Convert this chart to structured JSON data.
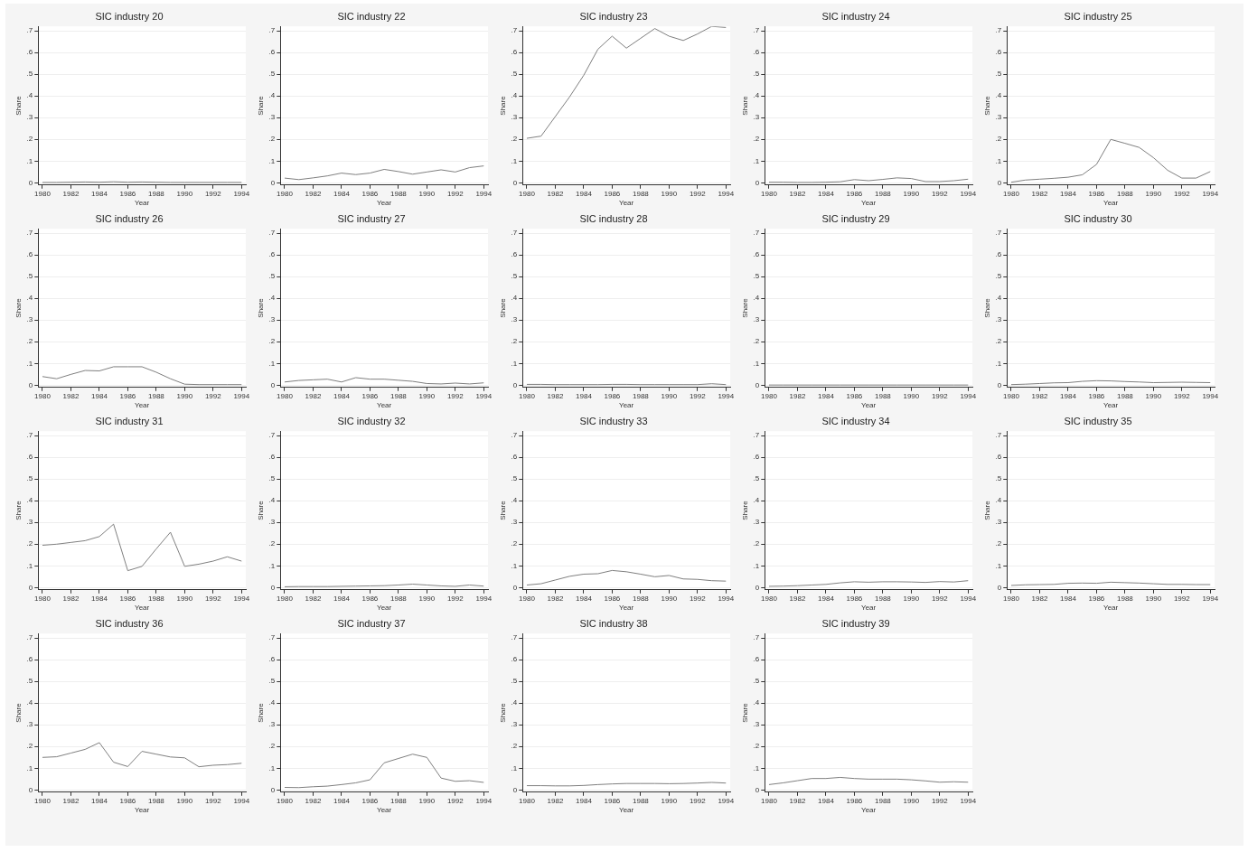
{
  "chart_data": [
    {
      "type": "line",
      "title": "SIC industry 20",
      "xlabel": "Year",
      "ylabel": "Share",
      "x": [
        1980,
        1981,
        1982,
        1983,
        1984,
        1985,
        1986,
        1987,
        1988,
        1989,
        1990,
        1991,
        1992,
        1993,
        1994
      ],
      "values": [
        0.002,
        0.002,
        0.003,
        0.004,
        0.003,
        0.005,
        0.003,
        0.004,
        0.003,
        0.002,
        0.002,
        0.002,
        0.002,
        0.002,
        0.002
      ],
      "color": "#7f7f7f",
      "xlim": [
        1979.7,
        1994.3
      ],
      "xticks": [
        1980,
        1982,
        1984,
        1986,
        1988,
        1990,
        1992,
        1994
      ],
      "ylim": [
        -0.01,
        0.72
      ],
      "yticks": [
        {
          "value": 0,
          "label": "0"
        },
        {
          "value": 0.1,
          "label": ".1"
        },
        {
          "value": 0.2,
          "label": ".2"
        },
        {
          "value": 0.3,
          "label": ".3"
        },
        {
          "value": 0.4,
          "label": ".4"
        },
        {
          "value": 0.5,
          "label": ".5"
        },
        {
          "value": 0.6,
          "label": ".6"
        },
        {
          "value": 0.7,
          "label": ".7"
        }
      ],
      "grid": "y",
      "legend": false,
      "marker": "none",
      "line_style": "solid"
    },
    {
      "type": "line",
      "title": "SIC industry 22",
      "xlabel": "Year",
      "ylabel": "Share",
      "x": [
        1980,
        1981,
        1982,
        1983,
        1984,
        1985,
        1986,
        1987,
        1988,
        1989,
        1990,
        1991,
        1992,
        1993,
        1994
      ],
      "values": [
        0.022,
        0.015,
        0.023,
        0.032,
        0.045,
        0.038,
        0.045,
        0.062,
        0.052,
        0.04,
        0.05,
        0.06,
        0.05,
        0.07,
        0.078
      ],
      "color": "#7f7f7f",
      "xlim": [
        1979.7,
        1994.3
      ],
      "xticks": [
        1980,
        1982,
        1984,
        1986,
        1988,
        1990,
        1992,
        1994
      ],
      "ylim": [
        -0.01,
        0.72
      ],
      "yticks": [
        {
          "value": 0,
          "label": "0"
        },
        {
          "value": 0.1,
          "label": ".1"
        },
        {
          "value": 0.2,
          "label": ".2"
        },
        {
          "value": 0.3,
          "label": ".3"
        },
        {
          "value": 0.4,
          "label": ".4"
        },
        {
          "value": 0.5,
          "label": ".5"
        },
        {
          "value": 0.6,
          "label": ".6"
        },
        {
          "value": 0.7,
          "label": ".7"
        }
      ],
      "grid": "y",
      "legend": false,
      "marker": "none",
      "line_style": "solid"
    },
    {
      "type": "line",
      "title": "SIC industry 23",
      "xlabel": "Year",
      "ylabel": "Share",
      "x": [
        1980,
        1981,
        1982,
        1983,
        1984,
        1985,
        1986,
        1987,
        1988,
        1989,
        1990,
        1991,
        1992,
        1993,
        1994
      ],
      "values": [
        0.205,
        0.215,
        0.305,
        0.395,
        0.495,
        0.615,
        0.675,
        0.62,
        0.665,
        0.71,
        0.675,
        0.655,
        0.685,
        0.72,
        0.715
      ],
      "color": "#7f7f7f",
      "xlim": [
        1979.7,
        1994.3
      ],
      "xticks": [
        1980,
        1982,
        1984,
        1986,
        1988,
        1990,
        1992,
        1994
      ],
      "ylim": [
        -0.01,
        0.72
      ],
      "yticks": [
        {
          "value": 0,
          "label": "0"
        },
        {
          "value": 0.1,
          "label": ".1"
        },
        {
          "value": 0.2,
          "label": ".2"
        },
        {
          "value": 0.3,
          "label": ".3"
        },
        {
          "value": 0.4,
          "label": ".4"
        },
        {
          "value": 0.5,
          "label": ".5"
        },
        {
          "value": 0.6,
          "label": ".6"
        },
        {
          "value": 0.7,
          "label": ".7"
        }
      ],
      "grid": "y",
      "legend": false,
      "marker": "none",
      "line_style": "solid"
    },
    {
      "type": "line",
      "title": "SIC industry 24",
      "xlabel": "Year",
      "ylabel": "Share",
      "x": [
        1980,
        1981,
        1982,
        1983,
        1984,
        1985,
        1986,
        1987,
        1988,
        1989,
        1990,
        1991,
        1992,
        1993,
        1994
      ],
      "values": [
        0.003,
        0.003,
        0.002,
        0.002,
        0.003,
        0.005,
        0.015,
        0.01,
        0.016,
        0.023,
        0.02,
        0.006,
        0.006,
        0.01,
        0.017
      ],
      "color": "#7f7f7f",
      "xlim": [
        1979.7,
        1994.3
      ],
      "xticks": [
        1980,
        1982,
        1984,
        1986,
        1988,
        1990,
        1992,
        1994
      ],
      "ylim": [
        -0.01,
        0.72
      ],
      "yticks": [
        {
          "value": 0,
          "label": "0"
        },
        {
          "value": 0.1,
          "label": ".1"
        },
        {
          "value": 0.2,
          "label": ".2"
        },
        {
          "value": 0.3,
          "label": ".3"
        },
        {
          "value": 0.4,
          "label": ".4"
        },
        {
          "value": 0.5,
          "label": ".5"
        },
        {
          "value": 0.6,
          "label": ".6"
        },
        {
          "value": 0.7,
          "label": ".7"
        }
      ],
      "grid": "y",
      "legend": false,
      "marker": "none",
      "line_style": "solid"
    },
    {
      "type": "line",
      "title": "SIC industry 25",
      "xlabel": "Year",
      "ylabel": "Share",
      "x": [
        1980,
        1981,
        1982,
        1983,
        1984,
        1985,
        1986,
        1987,
        1988,
        1989,
        1990,
        1991,
        1992,
        1993,
        1994
      ],
      "values": [
        0.003,
        0.013,
        0.017,
        0.021,
        0.026,
        0.037,
        0.085,
        0.2,
        0.182,
        0.163,
        0.116,
        0.058,
        0.022,
        0.022,
        0.052
      ],
      "color": "#7f7f7f",
      "xlim": [
        1979.7,
        1994.3
      ],
      "xticks": [
        1980,
        1982,
        1984,
        1986,
        1988,
        1990,
        1992,
        1994
      ],
      "ylim": [
        -0.01,
        0.72
      ],
      "yticks": [
        {
          "value": 0,
          "label": "0"
        },
        {
          "value": 0.1,
          "label": ".1"
        },
        {
          "value": 0.2,
          "label": ".2"
        },
        {
          "value": 0.3,
          "label": ".3"
        },
        {
          "value": 0.4,
          "label": ".4"
        },
        {
          "value": 0.5,
          "label": ".5"
        },
        {
          "value": 0.6,
          "label": ".6"
        },
        {
          "value": 0.7,
          "label": ".7"
        }
      ],
      "grid": "y",
      "legend": false,
      "marker": "none",
      "line_style": "solid"
    },
    {
      "type": "line",
      "title": "SIC industry 26",
      "xlabel": "Year",
      "ylabel": "Share",
      "x": [
        1980,
        1981,
        1982,
        1983,
        1984,
        1985,
        1986,
        1987,
        1988,
        1989,
        1990,
        1991,
        1992,
        1993,
        1994
      ],
      "values": [
        0.04,
        0.03,
        0.05,
        0.068,
        0.066,
        0.085,
        0.085,
        0.085,
        0.06,
        0.03,
        0.005,
        0.003,
        0.003,
        0.003,
        0.003
      ],
      "color": "#7f7f7f",
      "xlim": [
        1979.7,
        1994.3
      ],
      "xticks": [
        1980,
        1982,
        1984,
        1986,
        1988,
        1990,
        1992,
        1994
      ],
      "ylim": [
        -0.01,
        0.72
      ],
      "yticks": [
        {
          "value": 0,
          "label": "0"
        },
        {
          "value": 0.1,
          "label": ".1"
        },
        {
          "value": 0.2,
          "label": ".2"
        },
        {
          "value": 0.3,
          "label": ".3"
        },
        {
          "value": 0.4,
          "label": ".4"
        },
        {
          "value": 0.5,
          "label": ".5"
        },
        {
          "value": 0.6,
          "label": ".6"
        },
        {
          "value": 0.7,
          "label": ".7"
        }
      ],
      "grid": "y",
      "legend": false,
      "marker": "none",
      "line_style": "solid"
    },
    {
      "type": "line",
      "title": "SIC industry 27",
      "xlabel": "Year",
      "ylabel": "Share",
      "x": [
        1980,
        1981,
        1982,
        1983,
        1984,
        1985,
        1986,
        1987,
        1988,
        1989,
        1990,
        1991,
        1992,
        1993,
        1994
      ],
      "values": [
        0.015,
        0.022,
        0.025,
        0.028,
        0.015,
        0.035,
        0.028,
        0.028,
        0.023,
        0.018,
        0.008,
        0.006,
        0.01,
        0.006,
        0.011
      ],
      "color": "#7f7f7f",
      "xlim": [
        1979.7,
        1994.3
      ],
      "xticks": [
        1980,
        1982,
        1984,
        1986,
        1988,
        1990,
        1992,
        1994
      ],
      "ylim": [
        -0.01,
        0.72
      ],
      "yticks": [
        {
          "value": 0,
          "label": "0"
        },
        {
          "value": 0.1,
          "label": ".1"
        },
        {
          "value": 0.2,
          "label": ".2"
        },
        {
          "value": 0.3,
          "label": ".3"
        },
        {
          "value": 0.4,
          "label": ".4"
        },
        {
          "value": 0.5,
          "label": ".5"
        },
        {
          "value": 0.6,
          "label": ".6"
        },
        {
          "value": 0.7,
          "label": ".7"
        }
      ],
      "grid": "y",
      "legend": false,
      "marker": "none",
      "line_style": "solid"
    },
    {
      "type": "line",
      "title": "SIC industry 28",
      "xlabel": "Year",
      "ylabel": "Share",
      "x": [
        1980,
        1981,
        1982,
        1983,
        1984,
        1985,
        1986,
        1987,
        1988,
        1989,
        1990,
        1991,
        1992,
        1993,
        1994
      ],
      "values": [
        0.004,
        0.004,
        0.003,
        0.003,
        0.003,
        0.003,
        0.004,
        0.004,
        0.003,
        0.003,
        0.003,
        0.003,
        0.003,
        0.007,
        0.003
      ],
      "color": "#7f7f7f",
      "xlim": [
        1979.7,
        1994.3
      ],
      "xticks": [
        1980,
        1982,
        1984,
        1986,
        1988,
        1990,
        1992,
        1994
      ],
      "ylim": [
        -0.01,
        0.72
      ],
      "yticks": [
        {
          "value": 0,
          "label": "0"
        },
        {
          "value": 0.1,
          "label": ".1"
        },
        {
          "value": 0.2,
          "label": ".2"
        },
        {
          "value": 0.3,
          "label": ".3"
        },
        {
          "value": 0.4,
          "label": ".4"
        },
        {
          "value": 0.5,
          "label": ".5"
        },
        {
          "value": 0.6,
          "label": ".6"
        },
        {
          "value": 0.7,
          "label": ".7"
        }
      ],
      "grid": "y",
      "legend": false,
      "marker": "none",
      "line_style": "solid"
    },
    {
      "type": "line",
      "title": "SIC industry 29",
      "xlabel": "Year",
      "ylabel": "Share",
      "x": [
        1980,
        1981,
        1982,
        1983,
        1984,
        1985,
        1986,
        1987,
        1988,
        1989,
        1990,
        1991,
        1992,
        1993,
        1994
      ],
      "values": [
        0.001,
        0.001,
        0.001,
        0.001,
        0.001,
        0.001,
        0.001,
        0.001,
        0.001,
        0.001,
        0.001,
        0.001,
        0.001,
        0.001,
        0.001
      ],
      "color": "#7f7f7f",
      "xlim": [
        1979.7,
        1994.3
      ],
      "xticks": [
        1980,
        1982,
        1984,
        1986,
        1988,
        1990,
        1992,
        1994
      ],
      "ylim": [
        -0.01,
        0.72
      ],
      "yticks": [
        {
          "value": 0,
          "label": "0"
        },
        {
          "value": 0.1,
          "label": ".1"
        },
        {
          "value": 0.2,
          "label": ".2"
        },
        {
          "value": 0.3,
          "label": ".3"
        },
        {
          "value": 0.4,
          "label": ".4"
        },
        {
          "value": 0.5,
          "label": ".5"
        },
        {
          "value": 0.6,
          "label": ".6"
        },
        {
          "value": 0.7,
          "label": ".7"
        }
      ],
      "grid": "y",
      "legend": false,
      "marker": "none",
      "line_style": "solid"
    },
    {
      "type": "line",
      "title": "SIC industry 30",
      "xlabel": "Year",
      "ylabel": "Share",
      "x": [
        1980,
        1981,
        1982,
        1983,
        1984,
        1985,
        1986,
        1987,
        1988,
        1989,
        1990,
        1991,
        1992,
        1993,
        1994
      ],
      "values": [
        0.003,
        0.005,
        0.008,
        0.011,
        0.012,
        0.018,
        0.021,
        0.02,
        0.017,
        0.015,
        0.012,
        0.013,
        0.014,
        0.013,
        0.012
      ],
      "color": "#7f7f7f",
      "xlim": [
        1979.7,
        1994.3
      ],
      "xticks": [
        1980,
        1982,
        1984,
        1986,
        1988,
        1990,
        1992,
        1994
      ],
      "ylim": [
        -0.01,
        0.72
      ],
      "yticks": [
        {
          "value": 0,
          "label": "0"
        },
        {
          "value": 0.1,
          "label": ".1"
        },
        {
          "value": 0.2,
          "label": ".2"
        },
        {
          "value": 0.3,
          "label": ".3"
        },
        {
          "value": 0.4,
          "label": ".4"
        },
        {
          "value": 0.5,
          "label": ".5"
        },
        {
          "value": 0.6,
          "label": ".6"
        },
        {
          "value": 0.7,
          "label": ".7"
        }
      ],
      "grid": "y",
      "legend": false,
      "marker": "none",
      "line_style": "solid"
    },
    {
      "type": "line",
      "title": "SIC industry 31",
      "xlabel": "Year",
      "ylabel": "Share",
      "x": [
        1980,
        1981,
        1982,
        1983,
        1984,
        1985,
        1986,
        1987,
        1988,
        1989,
        1990,
        1991,
        1992,
        1993,
        1994
      ],
      "values": [
        0.195,
        0.2,
        0.208,
        0.216,
        0.235,
        0.292,
        0.078,
        0.098,
        0.178,
        0.255,
        0.098,
        0.108,
        0.122,
        0.142,
        0.122
      ],
      "color": "#7f7f7f",
      "xlim": [
        1979.7,
        1994.3
      ],
      "xticks": [
        1980,
        1982,
        1984,
        1986,
        1988,
        1990,
        1992,
        1994
      ],
      "ylim": [
        -0.01,
        0.72
      ],
      "yticks": [
        {
          "value": 0,
          "label": "0"
        },
        {
          "value": 0.1,
          "label": ".1"
        },
        {
          "value": 0.2,
          "label": ".2"
        },
        {
          "value": 0.3,
          "label": ".3"
        },
        {
          "value": 0.4,
          "label": ".4"
        },
        {
          "value": 0.5,
          "label": ".5"
        },
        {
          "value": 0.6,
          "label": ".6"
        },
        {
          "value": 0.7,
          "label": ".7"
        }
      ],
      "grid": "y",
      "legend": false,
      "marker": "none",
      "line_style": "solid"
    },
    {
      "type": "line",
      "title": "SIC industry 32",
      "xlabel": "Year",
      "ylabel": "Share",
      "x": [
        1980,
        1981,
        1982,
        1983,
        1984,
        1985,
        1986,
        1987,
        1988,
        1989,
        1990,
        1991,
        1992,
        1993,
        1994
      ],
      "values": [
        0.004,
        0.005,
        0.005,
        0.005,
        0.006,
        0.007,
        0.008,
        0.009,
        0.012,
        0.016,
        0.012,
        0.008,
        0.006,
        0.012,
        0.007
      ],
      "color": "#7f7f7f",
      "xlim": [
        1979.7,
        1994.3
      ],
      "xticks": [
        1980,
        1982,
        1984,
        1986,
        1988,
        1990,
        1992,
        1994
      ],
      "ylim": [
        -0.01,
        0.72
      ],
      "yticks": [
        {
          "value": 0,
          "label": "0"
        },
        {
          "value": 0.1,
          "label": ".1"
        },
        {
          "value": 0.2,
          "label": ".2"
        },
        {
          "value": 0.3,
          "label": ".3"
        },
        {
          "value": 0.4,
          "label": ".4"
        },
        {
          "value": 0.5,
          "label": ".5"
        },
        {
          "value": 0.6,
          "label": ".6"
        },
        {
          "value": 0.7,
          "label": ".7"
        }
      ],
      "grid": "y",
      "legend": false,
      "marker": "none",
      "line_style": "solid"
    },
    {
      "type": "line",
      "title": "SIC industry 33",
      "xlabel": "Year",
      "ylabel": "Share",
      "x": [
        1980,
        1981,
        1982,
        1983,
        1984,
        1985,
        1986,
        1987,
        1988,
        1989,
        1990,
        1991,
        1992,
        1993,
        1994
      ],
      "values": [
        0.012,
        0.018,
        0.035,
        0.052,
        0.062,
        0.064,
        0.079,
        0.073,
        0.062,
        0.05,
        0.056,
        0.04,
        0.038,
        0.032,
        0.03
      ],
      "color": "#7f7f7f",
      "xlim": [
        1979.7,
        1994.3
      ],
      "xticks": [
        1980,
        1982,
        1984,
        1986,
        1988,
        1990,
        1992,
        1994
      ],
      "ylim": [
        -0.01,
        0.72
      ],
      "yticks": [
        {
          "value": 0,
          "label": "0"
        },
        {
          "value": 0.1,
          "label": ".1"
        },
        {
          "value": 0.2,
          "label": ".2"
        },
        {
          "value": 0.3,
          "label": ".3"
        },
        {
          "value": 0.4,
          "label": ".4"
        },
        {
          "value": 0.5,
          "label": ".5"
        },
        {
          "value": 0.6,
          "label": ".6"
        },
        {
          "value": 0.7,
          "label": ".7"
        }
      ],
      "grid": "y",
      "legend": false,
      "marker": "none",
      "line_style": "solid"
    },
    {
      "type": "line",
      "title": "SIC industry 34",
      "xlabel": "Year",
      "ylabel": "Share",
      "x": [
        1980,
        1981,
        1982,
        1983,
        1984,
        1985,
        1986,
        1987,
        1988,
        1989,
        1990,
        1991,
        1992,
        1993,
        1994
      ],
      "values": [
        0.006,
        0.007,
        0.009,
        0.012,
        0.015,
        0.022,
        0.027,
        0.025,
        0.027,
        0.027,
        0.026,
        0.024,
        0.028,
        0.026,
        0.032
      ],
      "color": "#7f7f7f",
      "xlim": [
        1979.7,
        1994.3
      ],
      "xticks": [
        1980,
        1982,
        1984,
        1986,
        1988,
        1990,
        1992,
        1994
      ],
      "ylim": [
        -0.01,
        0.72
      ],
      "yticks": [
        {
          "value": 0,
          "label": "0"
        },
        {
          "value": 0.1,
          "label": ".1"
        },
        {
          "value": 0.2,
          "label": ".2"
        },
        {
          "value": 0.3,
          "label": ".3"
        },
        {
          "value": 0.4,
          "label": ".4"
        },
        {
          "value": 0.5,
          "label": ".5"
        },
        {
          "value": 0.6,
          "label": ".6"
        },
        {
          "value": 0.7,
          "label": ".7"
        }
      ],
      "grid": "y",
      "legend": false,
      "marker": "none",
      "line_style": "solid"
    },
    {
      "type": "line",
      "title": "SIC industry 35",
      "xlabel": "Year",
      "ylabel": "Share",
      "x": [
        1980,
        1981,
        1982,
        1983,
        1984,
        1985,
        1986,
        1987,
        1988,
        1989,
        1990,
        1991,
        1992,
        1993,
        1994
      ],
      "values": [
        0.01,
        0.013,
        0.014,
        0.015,
        0.02,
        0.021,
        0.02,
        0.025,
        0.023,
        0.021,
        0.018,
        0.015,
        0.015,
        0.014,
        0.014
      ],
      "color": "#7f7f7f",
      "xlim": [
        1979.7,
        1994.3
      ],
      "xticks": [
        1980,
        1982,
        1984,
        1986,
        1988,
        1990,
        1992,
        1994
      ],
      "ylim": [
        -0.01,
        0.72
      ],
      "yticks": [
        {
          "value": 0,
          "label": "0"
        },
        {
          "value": 0.1,
          "label": ".1"
        },
        {
          "value": 0.2,
          "label": ".2"
        },
        {
          "value": 0.3,
          "label": ".3"
        },
        {
          "value": 0.4,
          "label": ".4"
        },
        {
          "value": 0.5,
          "label": ".5"
        },
        {
          "value": 0.6,
          "label": ".6"
        },
        {
          "value": 0.7,
          "label": ".7"
        }
      ],
      "grid": "y",
      "legend": false,
      "marker": "none",
      "line_style": "solid"
    },
    {
      "type": "line",
      "title": "SIC industry 36",
      "xlabel": "Year",
      "ylabel": "Share",
      "x": [
        1980,
        1981,
        1982,
        1983,
        1984,
        1985,
        1986,
        1987,
        1988,
        1989,
        1990,
        1991,
        1992,
        1993,
        1994
      ],
      "values": [
        0.15,
        0.153,
        0.17,
        0.187,
        0.218,
        0.128,
        0.108,
        0.178,
        0.165,
        0.152,
        0.148,
        0.107,
        0.114,
        0.117,
        0.123
      ],
      "color": "#7f7f7f",
      "xlim": [
        1979.7,
        1994.3
      ],
      "xticks": [
        1980,
        1982,
        1984,
        1986,
        1988,
        1990,
        1992,
        1994
      ],
      "ylim": [
        -0.01,
        0.72
      ],
      "yticks": [
        {
          "value": 0,
          "label": "0"
        },
        {
          "value": 0.1,
          "label": ".1"
        },
        {
          "value": 0.2,
          "label": ".2"
        },
        {
          "value": 0.3,
          "label": ".3"
        },
        {
          "value": 0.4,
          "label": ".4"
        },
        {
          "value": 0.5,
          "label": ".5"
        },
        {
          "value": 0.6,
          "label": ".6"
        },
        {
          "value": 0.7,
          "label": ".7"
        }
      ],
      "grid": "y",
      "legend": false,
      "marker": "none",
      "line_style": "solid"
    },
    {
      "type": "line",
      "title": "SIC industry 37",
      "xlabel": "Year",
      "ylabel": "Share",
      "x": [
        1980,
        1981,
        1982,
        1983,
        1984,
        1985,
        1986,
        1987,
        1988,
        1989,
        1990,
        1991,
        1992,
        1993,
        1994
      ],
      "values": [
        0.012,
        0.011,
        0.015,
        0.018,
        0.025,
        0.033,
        0.047,
        0.125,
        0.145,
        0.165,
        0.15,
        0.055,
        0.04,
        0.043,
        0.035
      ],
      "color": "#7f7f7f",
      "xlim": [
        1979.7,
        1994.3
      ],
      "xticks": [
        1980,
        1982,
        1984,
        1986,
        1988,
        1990,
        1992,
        1994
      ],
      "ylim": [
        -0.01,
        0.72
      ],
      "yticks": [
        {
          "value": 0,
          "label": "0"
        },
        {
          "value": 0.1,
          "label": ".1"
        },
        {
          "value": 0.2,
          "label": ".2"
        },
        {
          "value": 0.3,
          "label": ".3"
        },
        {
          "value": 0.4,
          "label": ".4"
        },
        {
          "value": 0.5,
          "label": ".5"
        },
        {
          "value": 0.6,
          "label": ".6"
        },
        {
          "value": 0.7,
          "label": ".7"
        }
      ],
      "grid": "y",
      "legend": false,
      "marker": "none",
      "line_style": "solid"
    },
    {
      "type": "line",
      "title": "SIC industry 38",
      "xlabel": "Year",
      "ylabel": "Share",
      "x": [
        1980,
        1981,
        1982,
        1983,
        1984,
        1985,
        1986,
        1987,
        1988,
        1989,
        1990,
        1991,
        1992,
        1993,
        1994
      ],
      "values": [
        0.02,
        0.02,
        0.019,
        0.019,
        0.021,
        0.025,
        0.028,
        0.03,
        0.03,
        0.03,
        0.029,
        0.03,
        0.032,
        0.035,
        0.032
      ],
      "color": "#7f7f7f",
      "xlim": [
        1979.7,
        1994.3
      ],
      "xticks": [
        1980,
        1982,
        1984,
        1986,
        1988,
        1990,
        1992,
        1994
      ],
      "ylim": [
        -0.01,
        0.72
      ],
      "yticks": [
        {
          "value": 0,
          "label": "0"
        },
        {
          "value": 0.1,
          "label": ".1"
        },
        {
          "value": 0.2,
          "label": ".2"
        },
        {
          "value": 0.3,
          "label": ".3"
        },
        {
          "value": 0.4,
          "label": ".4"
        },
        {
          "value": 0.5,
          "label": ".5"
        },
        {
          "value": 0.6,
          "label": ".6"
        },
        {
          "value": 0.7,
          "label": ".7"
        }
      ],
      "grid": "y",
      "legend": false,
      "marker": "none",
      "line_style": "solid"
    },
    {
      "type": "line",
      "title": "SIC industry 39",
      "xlabel": "Year",
      "ylabel": "Share",
      "x": [
        1980,
        1981,
        1982,
        1983,
        1984,
        1985,
        1986,
        1987,
        1988,
        1989,
        1990,
        1991,
        1992,
        1993,
        1994
      ],
      "values": [
        0.025,
        0.033,
        0.043,
        0.053,
        0.053,
        0.058,
        0.053,
        0.05,
        0.05,
        0.05,
        0.047,
        0.042,
        0.036,
        0.038,
        0.036
      ],
      "color": "#7f7f7f",
      "xlim": [
        1979.7,
        1994.3
      ],
      "xticks": [
        1980,
        1982,
        1984,
        1986,
        1988,
        1990,
        1992,
        1994
      ],
      "ylim": [
        -0.01,
        0.72
      ],
      "yticks": [
        {
          "value": 0,
          "label": "0"
        },
        {
          "value": 0.1,
          "label": ".1"
        },
        {
          "value": 0.2,
          "label": ".2"
        },
        {
          "value": 0.3,
          "label": ".3"
        },
        {
          "value": 0.4,
          "label": ".4"
        },
        {
          "value": 0.5,
          "label": ".5"
        },
        {
          "value": 0.6,
          "label": ".6"
        },
        {
          "value": 0.7,
          "label": ".7"
        }
      ],
      "grid": "y",
      "legend": false,
      "marker": "none",
      "line_style": "solid"
    }
  ]
}
